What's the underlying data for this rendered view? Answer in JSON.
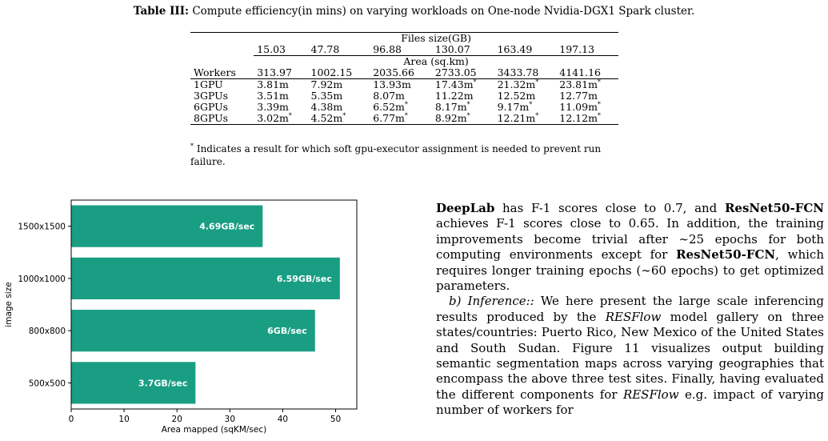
{
  "caption": {
    "label": "Table III:",
    "text": "Compute efficiency(in mins) on varying workloads on One-node Nvidia-DGX1 Spark cluster."
  },
  "table": {
    "files_header": "Files size(GB)",
    "files": [
      "15.03",
      "47.78",
      "96.88",
      "130.07",
      "163.49",
      "197.13"
    ],
    "area_header": "Area (sq.km)",
    "workers_label": "Workers",
    "areas": [
      "313.97",
      "1002.15",
      "2035.66",
      "2733.05",
      "3433.78",
      "4141.16"
    ],
    "rows": [
      {
        "label": "1GPU",
        "cells": [
          {
            "v": "3.81m",
            "s": ""
          },
          {
            "v": "7.92m",
            "s": ""
          },
          {
            "v": "13.93m",
            "s": ""
          },
          {
            "v": "17.43m",
            "s": "*"
          },
          {
            "v": "21.32m",
            "s": "*"
          },
          {
            "v": "23.81m",
            "s": "*"
          }
        ]
      },
      {
        "label": "3GPUs",
        "cells": [
          {
            "v": "3.51m",
            "s": ""
          },
          {
            "v": "5.35m",
            "s": ""
          },
          {
            "v": "8.07m",
            "s": ""
          },
          {
            "v": "11.22m",
            "s": ""
          },
          {
            "v": "12.52m",
            "s": ""
          },
          {
            "v": "12.77m",
            "s": ""
          }
        ]
      },
      {
        "label": "6GPUs",
        "cells": [
          {
            "v": "3.39m",
            "s": ""
          },
          {
            "v": "4.38m",
            "s": ""
          },
          {
            "v": "6.52m",
            "s": "*"
          },
          {
            "v": "8.17m",
            "s": "*"
          },
          {
            "v": "9.17m",
            "s": "*"
          },
          {
            "v": "11.09m",
            "s": "*"
          }
        ]
      },
      {
        "label": "8GPUs",
        "cells": [
          {
            "v": "3.02m",
            "s": "*"
          },
          {
            "v": "4.52m",
            "s": "*"
          },
          {
            "v": "6.77m",
            "s": "*"
          },
          {
            "v": "8.92m",
            "s": "*"
          },
          {
            "v": "12.21m",
            "s": "*"
          },
          {
            "v": "12.12m",
            "s": "*"
          }
        ]
      }
    ],
    "footnote_mark": "*",
    "footnote": "Indicates a result for which soft gpu-executor assignment is needed to prevent run failure."
  },
  "chart_data": {
    "type": "bar",
    "orientation": "horizontal",
    "categories": [
      "1500x1500",
      "1000x1000",
      "800x800",
      "500x500"
    ],
    "values": [
      36.2,
      50.8,
      46.1,
      23.5
    ],
    "data_labels": [
      "4.69GB/sec",
      "6.59GB/sec",
      "6GB/sec",
      "3.7GB/sec"
    ],
    "xlabel": "Area mapped (sqKM/sec)",
    "ylabel": "image size",
    "xlim": [
      0,
      54
    ],
    "xticks": [
      0,
      10,
      20,
      30,
      40,
      50
    ],
    "bar_color": "#1a9e83",
    "grid": false
  },
  "text": {
    "p1": [
      {
        "t": "DeepLab",
        "b": true
      },
      {
        "t": " has F-1 scores close to 0.7, and "
      },
      {
        "t": "ResNet50-FCN",
        "b": true
      },
      {
        "t": " achieves F-1 scores close to 0.65. In addition, the training improvements become trivial after ∼25 epochs for both computing environments except for "
      },
      {
        "t": "ResNet50-FCN",
        "b": true
      },
      {
        "t": ", which requires longer training epochs (∼60 epochs) to get optimized parameters."
      }
    ],
    "p2": [
      {
        "t": "b) Inference::",
        "i": true
      },
      {
        "t": " We here present the large scale inferencing results produced by the "
      },
      {
        "t": "RESFlow",
        "i": true
      },
      {
        "t": " model gallery on three states/countries: Puerto Rico, New Mexico of the United States and South Sudan. Figure 11 visualizes output building semantic segmentation maps across varying geographies that encompass the above three test sites. Finally, having evaluated the different components for "
      },
      {
        "t": "RESFlow",
        "i": true
      },
      {
        "t": " e.g. impact of varying number of workers for"
      }
    ]
  }
}
